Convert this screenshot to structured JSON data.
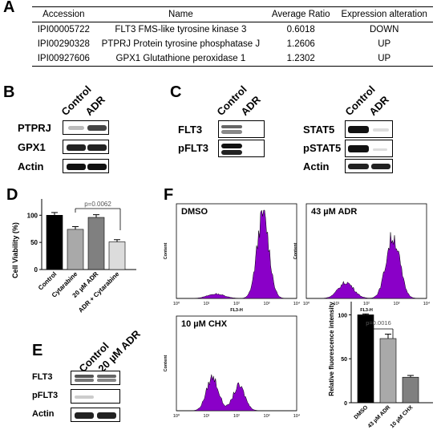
{
  "panels": {
    "A": "A",
    "B": "B",
    "C": "C",
    "D": "D",
    "E": "E",
    "F": "F"
  },
  "table": {
    "headers": [
      "Accession",
      "Name",
      "Average Ratio",
      "Expression alteration"
    ],
    "rows": [
      [
        "IPI00005722",
        "FLT3 FMS-like tyrosine kinase 3",
        "0.6018",
        "DOWN"
      ],
      [
        "IPI00290328",
        "PTPRJ Protein tyrosine phosphatase J",
        "1.2606",
        "UP"
      ],
      [
        "IPI00927606",
        "GPX1 Glutathione peroxidase 1",
        "1.2302",
        "UP"
      ]
    ]
  },
  "blot_B": {
    "columns": [
      "Control",
      "ADR"
    ],
    "rows": [
      "PTPRJ",
      "GPX1",
      "Actin"
    ]
  },
  "blot_C": {
    "columns": [
      "Control",
      "ADR"
    ],
    "left_rows": [
      "FLT3",
      "pFLT3"
    ],
    "right_rows": [
      "STAT5",
      "pSTAT5",
      "Actin"
    ]
  },
  "blot_E": {
    "columns": [
      "Control",
      "20 µM ADR"
    ],
    "rows": [
      "FLT3",
      "pFLT3",
      "Actin"
    ]
  },
  "chart_data": [
    {
      "type": "bar",
      "panel": "D",
      "ylabel": "Cell Viability (%)",
      "categories": [
        "Control",
        "Cytarabine",
        "20 µM ADR",
        "ADR + Cytarabine"
      ],
      "values": [
        100,
        74,
        96,
        51
      ],
      "errors": [
        5,
        5,
        5,
        4
      ],
      "colors": [
        "#000000",
        "#a9a9a9",
        "#808080",
        "#dcdcdc"
      ],
      "yticks": [
        "0",
        "50",
        "100"
      ],
      "ylim": [
        0,
        130
      ],
      "annotation": "p=0.0062"
    },
    {
      "type": "bar",
      "panel": "F",
      "ylabel": "Relative fluorescence intensity",
      "categories": [
        "DMSO",
        "43 µM ADR",
        "10 µM CHX"
      ],
      "values": [
        100,
        73,
        29
      ],
      "errors": [
        1,
        5,
        2
      ],
      "colors": [
        "#000000",
        "#a9a9a9",
        "#808080"
      ],
      "yticks": [
        "0",
        "50",
        "100"
      ],
      "ylim": [
        0,
        115
      ],
      "annotation": "p=0.0016"
    }
  ],
  "histograms": {
    "titles": [
      "DMSO",
      "43 µM ADR",
      "10 µM CHX"
    ],
    "ylabel": "Content",
    "xlabel": "FL3-H",
    "xticks": [
      "10⁰",
      "10¹",
      "10²",
      "10³",
      "10⁴"
    ],
    "fill": "#8a00c8"
  }
}
